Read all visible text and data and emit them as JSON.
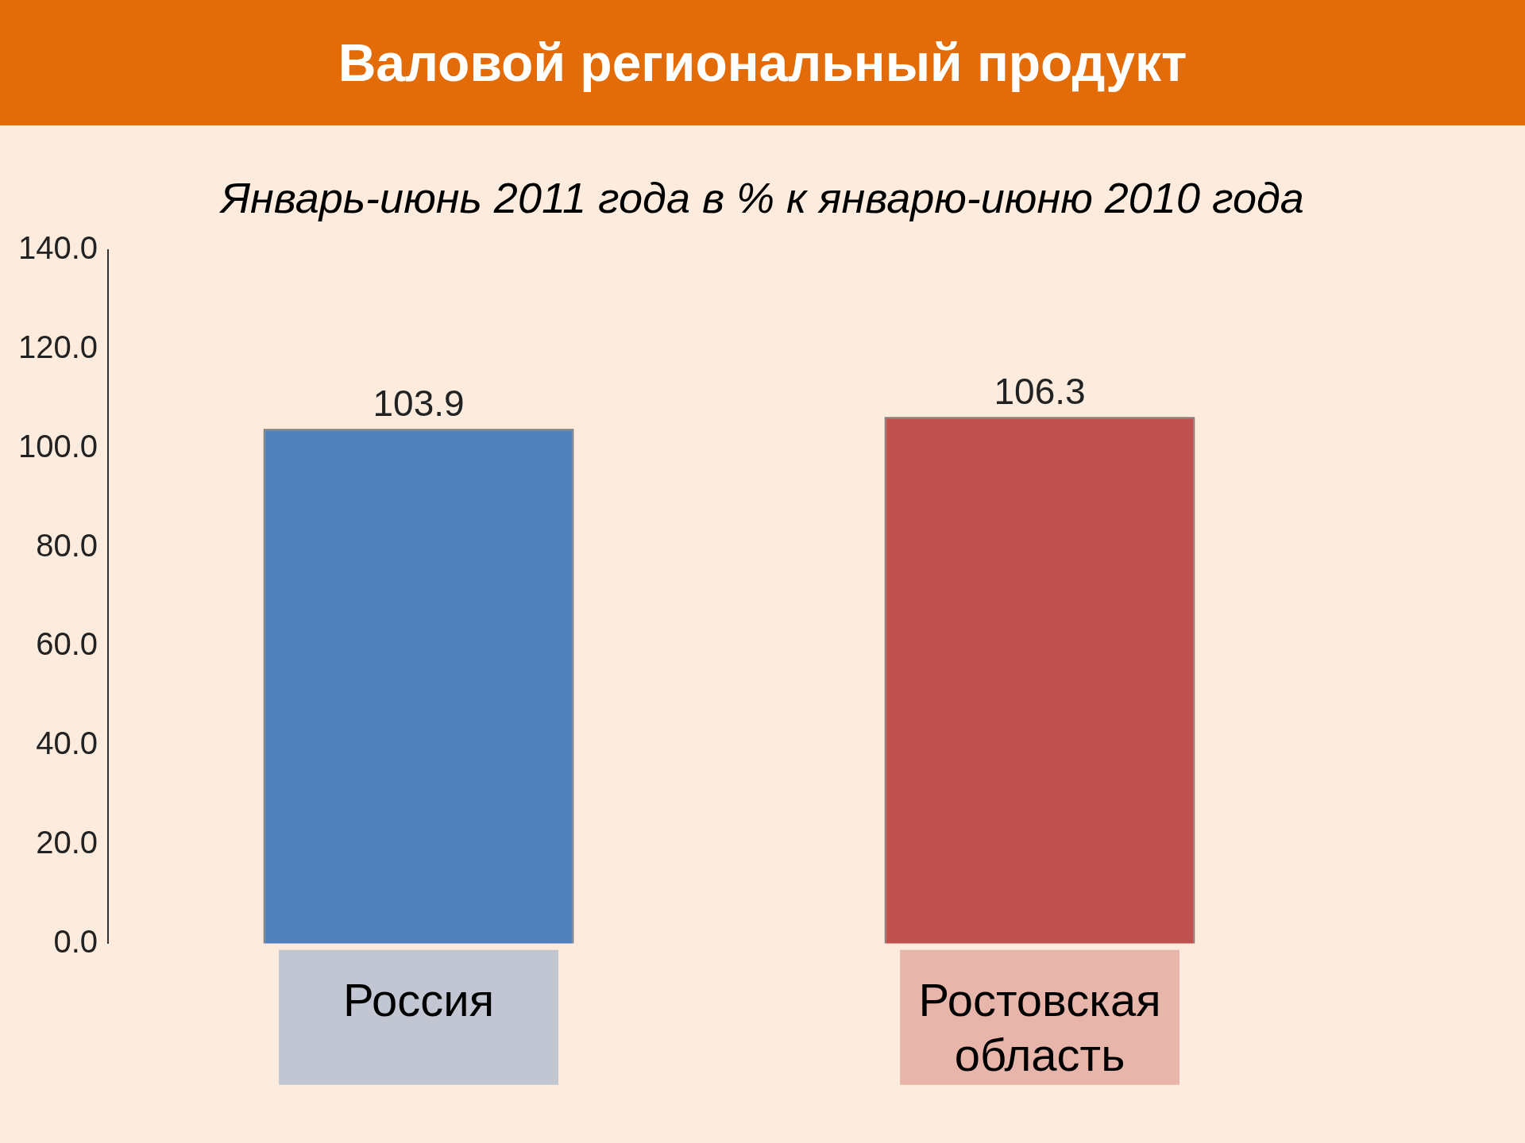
{
  "chart_data": {
    "type": "bar",
    "title": "Валовой региональный продукт",
    "subtitle": "Январь-июнь 2011 года в % к январю-июню 2010 года",
    "categories": [
      "Россия",
      "Ростовская область"
    ],
    "values": [
      103.9,
      106.3
    ],
    "colors": [
      "#4f81bd",
      "#c0504d"
    ],
    "ylim": [
      0,
      140
    ],
    "yticks": [
      {
        "value": 0,
        "label": "0.0"
      },
      {
        "value": 20,
        "label": "20.0"
      },
      {
        "value": 40,
        "label": "40.0"
      },
      {
        "value": 60,
        "label": "60.0"
      },
      {
        "value": 80,
        "label": "80.0"
      },
      {
        "value": 100,
        "label": "100.0"
      },
      {
        "value": 120,
        "label": "120.0"
      },
      {
        "value": 140,
        "label": "140.0"
      }
    ],
    "grid": false,
    "data_labels": true
  }
}
